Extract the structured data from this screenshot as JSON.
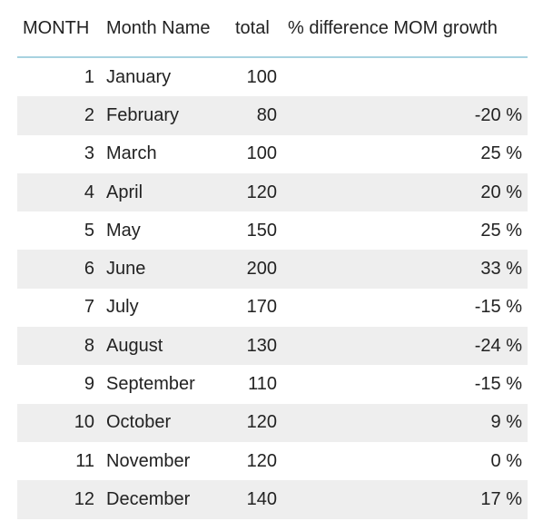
{
  "table": {
    "headers": {
      "month": "MONTH",
      "month_name": "Month Name",
      "total": "total",
      "pct": "% difference MOM growth"
    },
    "rows": [
      {
        "month": "1",
        "name": "January",
        "total": "100",
        "pct": ""
      },
      {
        "month": "2",
        "name": "February",
        "total": "80",
        "pct": "-20 %"
      },
      {
        "month": "3",
        "name": "March",
        "total": "100",
        "pct": "25 %"
      },
      {
        "month": "4",
        "name": "April",
        "total": "120",
        "pct": "20 %"
      },
      {
        "month": "5",
        "name": "May",
        "total": "150",
        "pct": "25 %"
      },
      {
        "month": "6",
        "name": "June",
        "total": "200",
        "pct": "33 %"
      },
      {
        "month": "7",
        "name": "July",
        "total": "170",
        "pct": "-15 %"
      },
      {
        "month": "8",
        "name": "August",
        "total": "130",
        "pct": "-24 %"
      },
      {
        "month": "9",
        "name": "September",
        "total": "110",
        "pct": "-15 %"
      },
      {
        "month": "10",
        "name": "October",
        "total": "120",
        "pct": "9 %"
      },
      {
        "month": "11",
        "name": "November",
        "total": "120",
        "pct": "0 %"
      },
      {
        "month": "12",
        "name": "December",
        "total": "140",
        "pct": "17 %"
      }
    ]
  },
  "colors": {
    "header_rule": "#a8d2e0",
    "alt_row": "#eeeeee",
    "text": "#222222"
  }
}
